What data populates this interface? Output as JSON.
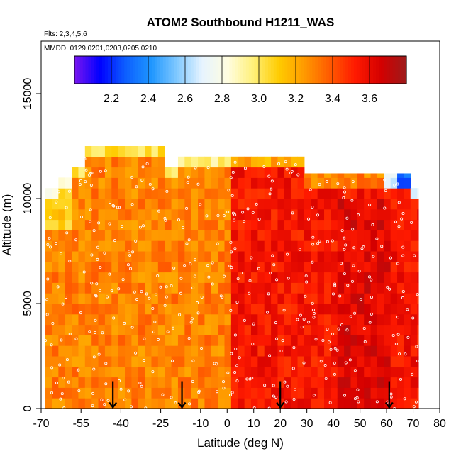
{
  "chart_data": {
    "type": "heatmap",
    "title": "ATOM2 Southbound H1211_WAS",
    "annotations": [
      "Flts: 2,3,4,5,6",
      "MMDD: 0129,0201,0203,0205,0210"
    ],
    "xlabel": "Latitude (deg N)",
    "ylabel": "Altitude (m)",
    "xlim": [
      -70,
      80
    ],
    "ylim": [
      0,
      17500
    ],
    "x_ticks": [
      -70,
      -55,
      -40,
      -25,
      -10,
      0,
      10,
      20,
      30,
      40,
      50,
      60,
      70,
      80
    ],
    "x_tick_labels": [
      "-70",
      "-55",
      "-40",
      "-25",
      "-10",
      "0",
      "10",
      "20",
      "30",
      "40",
      "50",
      "60",
      "70",
      "80"
    ],
    "y_ticks": [
      0,
      5000,
      10000,
      15000
    ],
    "y_tick_labels": [
      "0",
      "5000",
      "10000",
      "15000"
    ],
    "colorbar": {
      "range": [
        2.0,
        3.8
      ],
      "ticks": [
        2.2,
        2.4,
        2.6,
        2.8,
        3.0,
        3.2,
        3.4,
        3.6
      ],
      "tick_labels": [
        "2.2",
        "2.4",
        "2.6",
        "2.8",
        "3.0",
        "3.2",
        "3.4",
        "3.6"
      ],
      "colors": [
        "#7b16f0",
        "#0000ff",
        "#0d5fff",
        "#1e96ff",
        "#7fc8ff",
        "#e6f4ff",
        "#fffde0",
        "#fff07a",
        "#ffcc00",
        "#ff9a00",
        "#ff5a00",
        "#ff1a00",
        "#d40000",
        "#9c1c1c"
      ]
    },
    "data_extent": {
      "lat": [
        -68.5,
        72
      ],
      "alt_max_m": 12500
    },
    "profile_markers_lat": [
      -43,
      -17,
      20,
      61
    ],
    "field_description_values": {
      "typical_low_latitude_south": 3.3,
      "typical_northern": 3.55,
      "upper_troposphere_edges": 2.9
    }
  }
}
